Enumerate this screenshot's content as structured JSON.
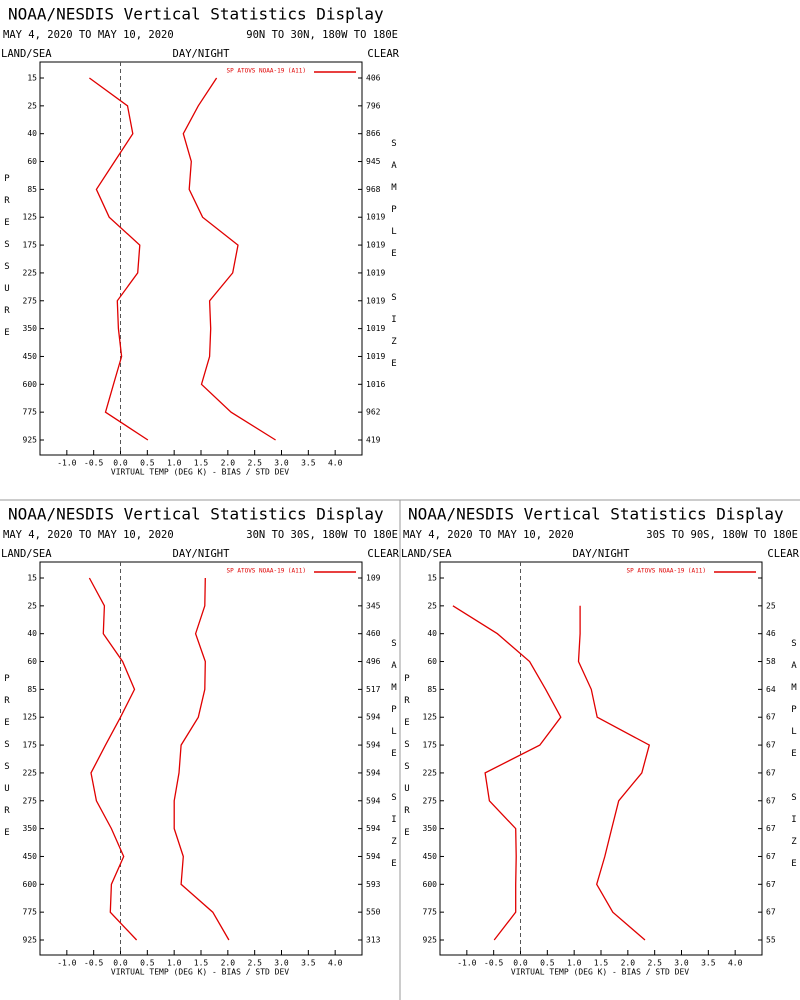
{
  "chart_data": [
    {
      "type": "line",
      "title": "NOAA/NESDIS Vertical Statistics Display",
      "date_range": "MAY 4, 2020 TO MAY 10, 2020",
      "region": "90N TO 30N, 180W TO 180E",
      "left_label": "LAND/SEA",
      "center_label": "DAY/NIGHT",
      "right_label": "CLEAR",
      "y_label": "PRESSURE",
      "y2_label": "SAMPLE SIZE",
      "x_label": "VIRTUAL TEMP (DEG K) - BIAS / STD DEV",
      "categories": [
        15,
        25,
        40,
        60,
        85,
        125,
        175,
        225,
        275,
        350,
        450,
        600,
        775,
        925
      ],
      "sample_size": [
        406,
        796,
        866,
        945,
        968,
        1019,
        1019,
        1019,
        1019,
        1019,
        1019,
        1016,
        962,
        419
      ],
      "series": [
        {
          "name": "SP ATOVS NOAA-19 (A11)",
          "color": "#e00000",
          "bias": [
            -0.58,
            0.13,
            0.23,
            -0.11,
            -0.45,
            -0.21,
            0.36,
            0.32,
            -0.06,
            -0.04,
            0.02,
            -0.13,
            -0.28,
            0.51
          ],
          "std_dev": [
            1.79,
            1.45,
            1.17,
            1.32,
            1.28,
            1.53,
            2.19,
            2.09,
            1.66,
            1.68,
            1.66,
            1.51,
            2.06,
            2.89
          ]
        }
      ],
      "xlim": [
        -1.5,
        4.5
      ],
      "xticks": [
        {
          "value": -1,
          "label": "-1.0"
        },
        -0.5,
        {
          "value": 0,
          "label": "0.0"
        },
        0.5,
        {
          "value": 1,
          "label": "1.0"
        },
        1.5,
        {
          "value": 2,
          "label": "2.0"
        },
        2.5,
        {
          "value": 3,
          "label": "3.0"
        },
        3.5,
        {
          "value": 4,
          "label": "4.0"
        }
      ],
      "reference_line": 0
    },
    {
      "type": "line",
      "title": "NOAA/NESDIS Vertical Statistics Display",
      "date_range": "MAY 4, 2020 TO MAY 10, 2020",
      "region": "30N TO 30S, 180W TO 180E",
      "left_label": "LAND/SEA",
      "center_label": "DAY/NIGHT",
      "right_label": "CLEAR",
      "y_label": "PRESSURE",
      "y2_label": "SAMPLE SIZE",
      "x_label": "VIRTUAL TEMP (DEG K) - BIAS / STD DEV",
      "categories": [
        15,
        25,
        40,
        60,
        85,
        125,
        175,
        225,
        275,
        350,
        450,
        600,
        775,
        925
      ],
      "sample_size": [
        109,
        345,
        460,
        496,
        517,
        594,
        594,
        594,
        594,
        594,
        594,
        593,
        550,
        313
      ],
      "series": [
        {
          "name": "SP ATOVS NOAA-19 (A11)",
          "color": "#e00000",
          "bias": [
            -0.58,
            -0.3,
            -0.32,
            0.04,
            0.26,
            0.0,
            -0.28,
            -0.55,
            -0.45,
            -0.17,
            0.06,
            -0.17,
            -0.19,
            0.3
          ],
          "std_dev": [
            1.58,
            1.57,
            1.4,
            1.58,
            1.57,
            1.45,
            1.13,
            1.09,
            1.0,
            1.0,
            1.17,
            1.13,
            1.72,
            2.02
          ]
        }
      ],
      "xlim": [
        -1.5,
        4.5
      ],
      "xticks": [
        {
          "value": -1,
          "label": "-1.0"
        },
        -0.5,
        {
          "value": 0,
          "label": "0.0"
        },
        0.5,
        {
          "value": 1,
          "label": "1.0"
        },
        1.5,
        {
          "value": 2,
          "label": "2.0"
        },
        2.5,
        {
          "value": 3,
          "label": "3.0"
        },
        3.5,
        {
          "value": 4,
          "label": "4.0"
        }
      ],
      "reference_line": 0
    },
    {
      "type": "line",
      "title": "NOAA/NESDIS Vertical Statistics Display",
      "date_range": "MAY 4, 2020 TO MAY 10, 2020",
      "region": "30S TO 90S, 180W TO 180E",
      "left_label": "LAND/SEA",
      "center_label": "DAY/NIGHT",
      "right_label": "CLEAR",
      "y_label": "PRESSURE",
      "y2_label": "SAMPLE SIZE",
      "x_label": "VIRTUAL TEMP (DEG K) - BIAS / STD DEV",
      "categories": [
        15,
        25,
        40,
        60,
        85,
        125,
        175,
        225,
        275,
        350,
        450,
        600,
        775,
        925
      ],
      "sample_size": [
        null,
        25,
        46,
        58,
        64,
        67,
        67,
        67,
        67,
        67,
        67,
        67,
        67,
        55
      ],
      "series": [
        {
          "name": "SP ATOVS NOAA-19 (A11)",
          "color": "#e00000",
          "bias": [
            null,
            -1.26,
            -0.43,
            0.17,
            0.47,
            0.75,
            0.36,
            -0.66,
            -0.58,
            -0.09,
            -0.08,
            -0.09,
            -0.09,
            -0.49
          ],
          "std_dev": [
            null,
            1.11,
            1.11,
            1.08,
            1.32,
            1.43,
            2.4,
            2.26,
            1.83,
            1.7,
            1.57,
            1.42,
            1.72,
            2.32
          ]
        }
      ],
      "xlim": [
        -1.5,
        4.5
      ],
      "xticks": [
        {
          "value": -1,
          "label": "-1.0"
        },
        -0.5,
        {
          "value": 0,
          "label": "0.0"
        },
        0.5,
        {
          "value": 1,
          "label": "1.0"
        },
        1.5,
        {
          "value": 2,
          "label": "2.0"
        },
        2.5,
        {
          "value": 3,
          "label": "3.0"
        },
        3.5,
        {
          "value": 4,
          "label": "4.0"
        }
      ],
      "reference_line": 0
    }
  ]
}
